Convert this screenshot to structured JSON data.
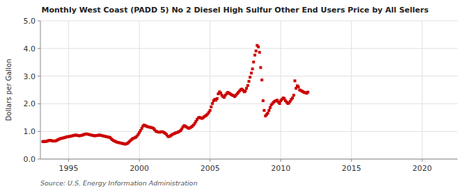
{
  "chart_data": {
    "type": "scatter",
    "title": "Monthly West Coast (PADD 5) No 2 Diesel High Sulfur Other End Users Price by All Sellers",
    "ylabel": "Dollars per Gallon",
    "annotations": [
      "Source: U.S. Energy Information Administration"
    ],
    "color": "#cc0000",
    "marker": "square",
    "grid": true,
    "xlim": [
      1993.0,
      2022.5
    ],
    "ylim": [
      0.0,
      5.0
    ],
    "xticks": [
      1995,
      2000,
      2005,
      2010,
      2015,
      2020
    ],
    "yticks": [
      {
        "value": 0.0,
        "label": "0.0"
      },
      {
        "value": 1.0,
        "label": "1.0"
      },
      {
        "value": 2.0,
        "label": "2.0"
      },
      {
        "value": 3.0,
        "label": "3.0"
      },
      {
        "value": 4.0,
        "label": "4.0"
      },
      {
        "value": 5.0,
        "label": "5.0"
      }
    ],
    "x": [
      1993.17,
      1993.25,
      1993.33,
      1993.42,
      1993.5,
      1993.58,
      1993.67,
      1993.75,
      1993.83,
      1993.92,
      1994.0,
      1994.08,
      1994.17,
      1994.25,
      1994.33,
      1994.42,
      1994.5,
      1994.58,
      1994.67,
      1994.75,
      1994.83,
      1994.92,
      1995.0,
      1995.08,
      1995.17,
      1995.25,
      1995.33,
      1995.42,
      1995.5,
      1995.58,
      1995.67,
      1995.75,
      1995.83,
      1995.92,
      1996.0,
      1996.08,
      1996.17,
      1996.25,
      1996.33,
      1996.42,
      1996.5,
      1996.58,
      1996.67,
      1996.75,
      1996.83,
      1996.92,
      1997.0,
      1997.08,
      1997.17,
      1997.25,
      1997.33,
      1997.42,
      1997.5,
      1997.58,
      1997.67,
      1997.75,
      1997.83,
      1997.92,
      1998.0,
      1998.08,
      1998.17,
      1998.25,
      1998.33,
      1998.42,
      1998.5,
      1998.58,
      1998.67,
      1998.75,
      1998.83,
      1998.92,
      1999.0,
      1999.08,
      1999.17,
      1999.25,
      1999.33,
      1999.42,
      1999.5,
      1999.58,
      1999.67,
      1999.75,
      1999.83,
      1999.92,
      2000.0,
      2000.08,
      2000.17,
      2000.25,
      2000.33,
      2000.42,
      2000.5,
      2000.58,
      2000.67,
      2000.75,
      2000.83,
      2000.92,
      2001.0,
      2001.08,
      2001.17,
      2001.25,
      2001.33,
      2001.42,
      2001.5,
      2001.58,
      2001.67,
      2001.75,
      2001.83,
      2001.92,
      2002.0,
      2002.08,
      2002.17,
      2002.25,
      2002.33,
      2002.42,
      2002.5,
      2002.58,
      2002.67,
      2002.75,
      2002.83,
      2002.92,
      2003.0,
      2003.08,
      2003.17,
      2003.25,
      2003.33,
      2003.42,
      2003.5,
      2003.58,
      2003.67,
      2003.75,
      2003.83,
      2003.92,
      2004.0,
      2004.08,
      2004.17,
      2004.25,
      2004.33,
      2004.42,
      2004.5,
      2004.58,
      2004.67,
      2004.75,
      2004.83,
      2004.92,
      2005.0,
      2005.08,
      2005.17,
      2005.25,
      2005.33,
      2005.42,
      2005.5,
      2005.58,
      2005.67,
      2005.75,
      2005.83,
      2005.92,
      2006.0,
      2006.08,
      2006.17,
      2006.25,
      2006.33,
      2006.42,
      2006.5,
      2006.58,
      2006.67,
      2006.75,
      2006.83,
      2006.92,
      2007.0,
      2007.08,
      2007.17,
      2007.25,
      2007.33,
      2007.42,
      2007.5,
      2007.58,
      2007.67,
      2007.75,
      2007.83,
      2007.92,
      2008.0,
      2008.08,
      2008.17,
      2008.25,
      2008.33,
      2008.42,
      2008.5,
      2008.58,
      2008.67,
      2008.75,
      2008.83,
      2008.92,
      2009.0,
      2009.08,
      2009.17,
      2009.25,
      2009.33,
      2009.42,
      2009.5,
      2009.58,
      2009.67,
      2009.75,
      2009.83,
      2009.92,
      2010.0,
      2010.08,
      2010.17,
      2010.25,
      2010.33,
      2010.42,
      2010.5,
      2010.58,
      2010.67,
      2010.75,
      2010.83,
      2010.92,
      2011.0,
      2011.08,
      2011.17,
      2011.25,
      2011.33,
      2011.42,
      2011.5,
      2011.58,
      2011.67,
      2011.75,
      2011.83,
      2011.92
    ],
    "values": [
      0.63,
      0.64,
      0.63,
      0.64,
      0.65,
      0.67,
      0.68,
      0.67,
      0.66,
      0.65,
      0.65,
      0.66,
      0.68,
      0.7,
      0.72,
      0.74,
      0.75,
      0.76,
      0.77,
      0.78,
      0.8,
      0.81,
      0.81,
      0.82,
      0.83,
      0.84,
      0.85,
      0.86,
      0.87,
      0.86,
      0.85,
      0.84,
      0.85,
      0.86,
      0.87,
      0.89,
      0.9,
      0.91,
      0.9,
      0.89,
      0.88,
      0.87,
      0.86,
      0.85,
      0.84,
      0.85,
      0.85,
      0.86,
      0.87,
      0.86,
      0.85,
      0.84,
      0.83,
      0.82,
      0.81,
      0.8,
      0.79,
      0.78,
      0.74,
      0.7,
      0.67,
      0.65,
      0.63,
      0.61,
      0.6,
      0.59,
      0.58,
      0.57,
      0.56,
      0.55,
      0.54,
      0.55,
      0.57,
      0.61,
      0.65,
      0.69,
      0.73,
      0.75,
      0.77,
      0.79,
      0.83,
      0.89,
      0.96,
      1.03,
      1.11,
      1.19,
      1.23,
      1.21,
      1.19,
      1.17,
      1.16,
      1.15,
      1.14,
      1.13,
      1.11,
      1.06,
      1.01,
      0.99,
      0.98,
      0.97,
      0.98,
      0.99,
      0.98,
      0.96,
      0.93,
      0.89,
      0.83,
      0.81,
      0.83,
      0.86,
      0.89,
      0.91,
      0.93,
      0.95,
      0.96,
      0.98,
      1.0,
      1.03,
      1.09,
      1.16,
      1.21,
      1.19,
      1.16,
      1.13,
      1.11,
      1.13,
      1.16,
      1.19,
      1.23,
      1.29,
      1.36,
      1.43,
      1.49,
      1.51,
      1.49,
      1.47,
      1.49,
      1.53,
      1.56,
      1.59,
      1.63,
      1.69,
      1.76,
      1.89,
      2.01,
      2.11,
      2.16,
      2.13,
      2.19,
      2.36,
      2.43,
      2.39,
      2.31,
      2.26,
      2.23,
      2.31,
      2.36,
      2.41,
      2.39,
      2.36,
      2.33,
      2.31,
      2.29,
      2.26,
      2.31,
      2.36,
      2.41,
      2.46,
      2.51,
      2.53,
      2.49,
      2.43,
      2.46,
      2.56,
      2.66,
      2.81,
      2.96,
      3.11,
      3.26,
      3.51,
      3.76,
      3.91,
      4.11,
      4.06,
      3.86,
      3.31,
      2.86,
      2.11,
      1.76,
      1.56,
      1.61,
      1.66,
      1.76,
      1.86,
      1.96,
      2.01,
      2.06,
      2.09,
      2.11,
      2.13,
      2.06,
      2.01,
      2.11,
      2.16,
      2.21,
      2.19,
      2.11,
      2.06,
      2.01,
      2.03,
      2.09,
      2.16,
      2.21,
      2.31,
      2.83,
      2.56,
      2.65,
      2.61,
      2.5,
      2.48,
      2.46,
      2.43,
      2.41,
      2.4,
      2.38,
      2.42
    ]
  }
}
